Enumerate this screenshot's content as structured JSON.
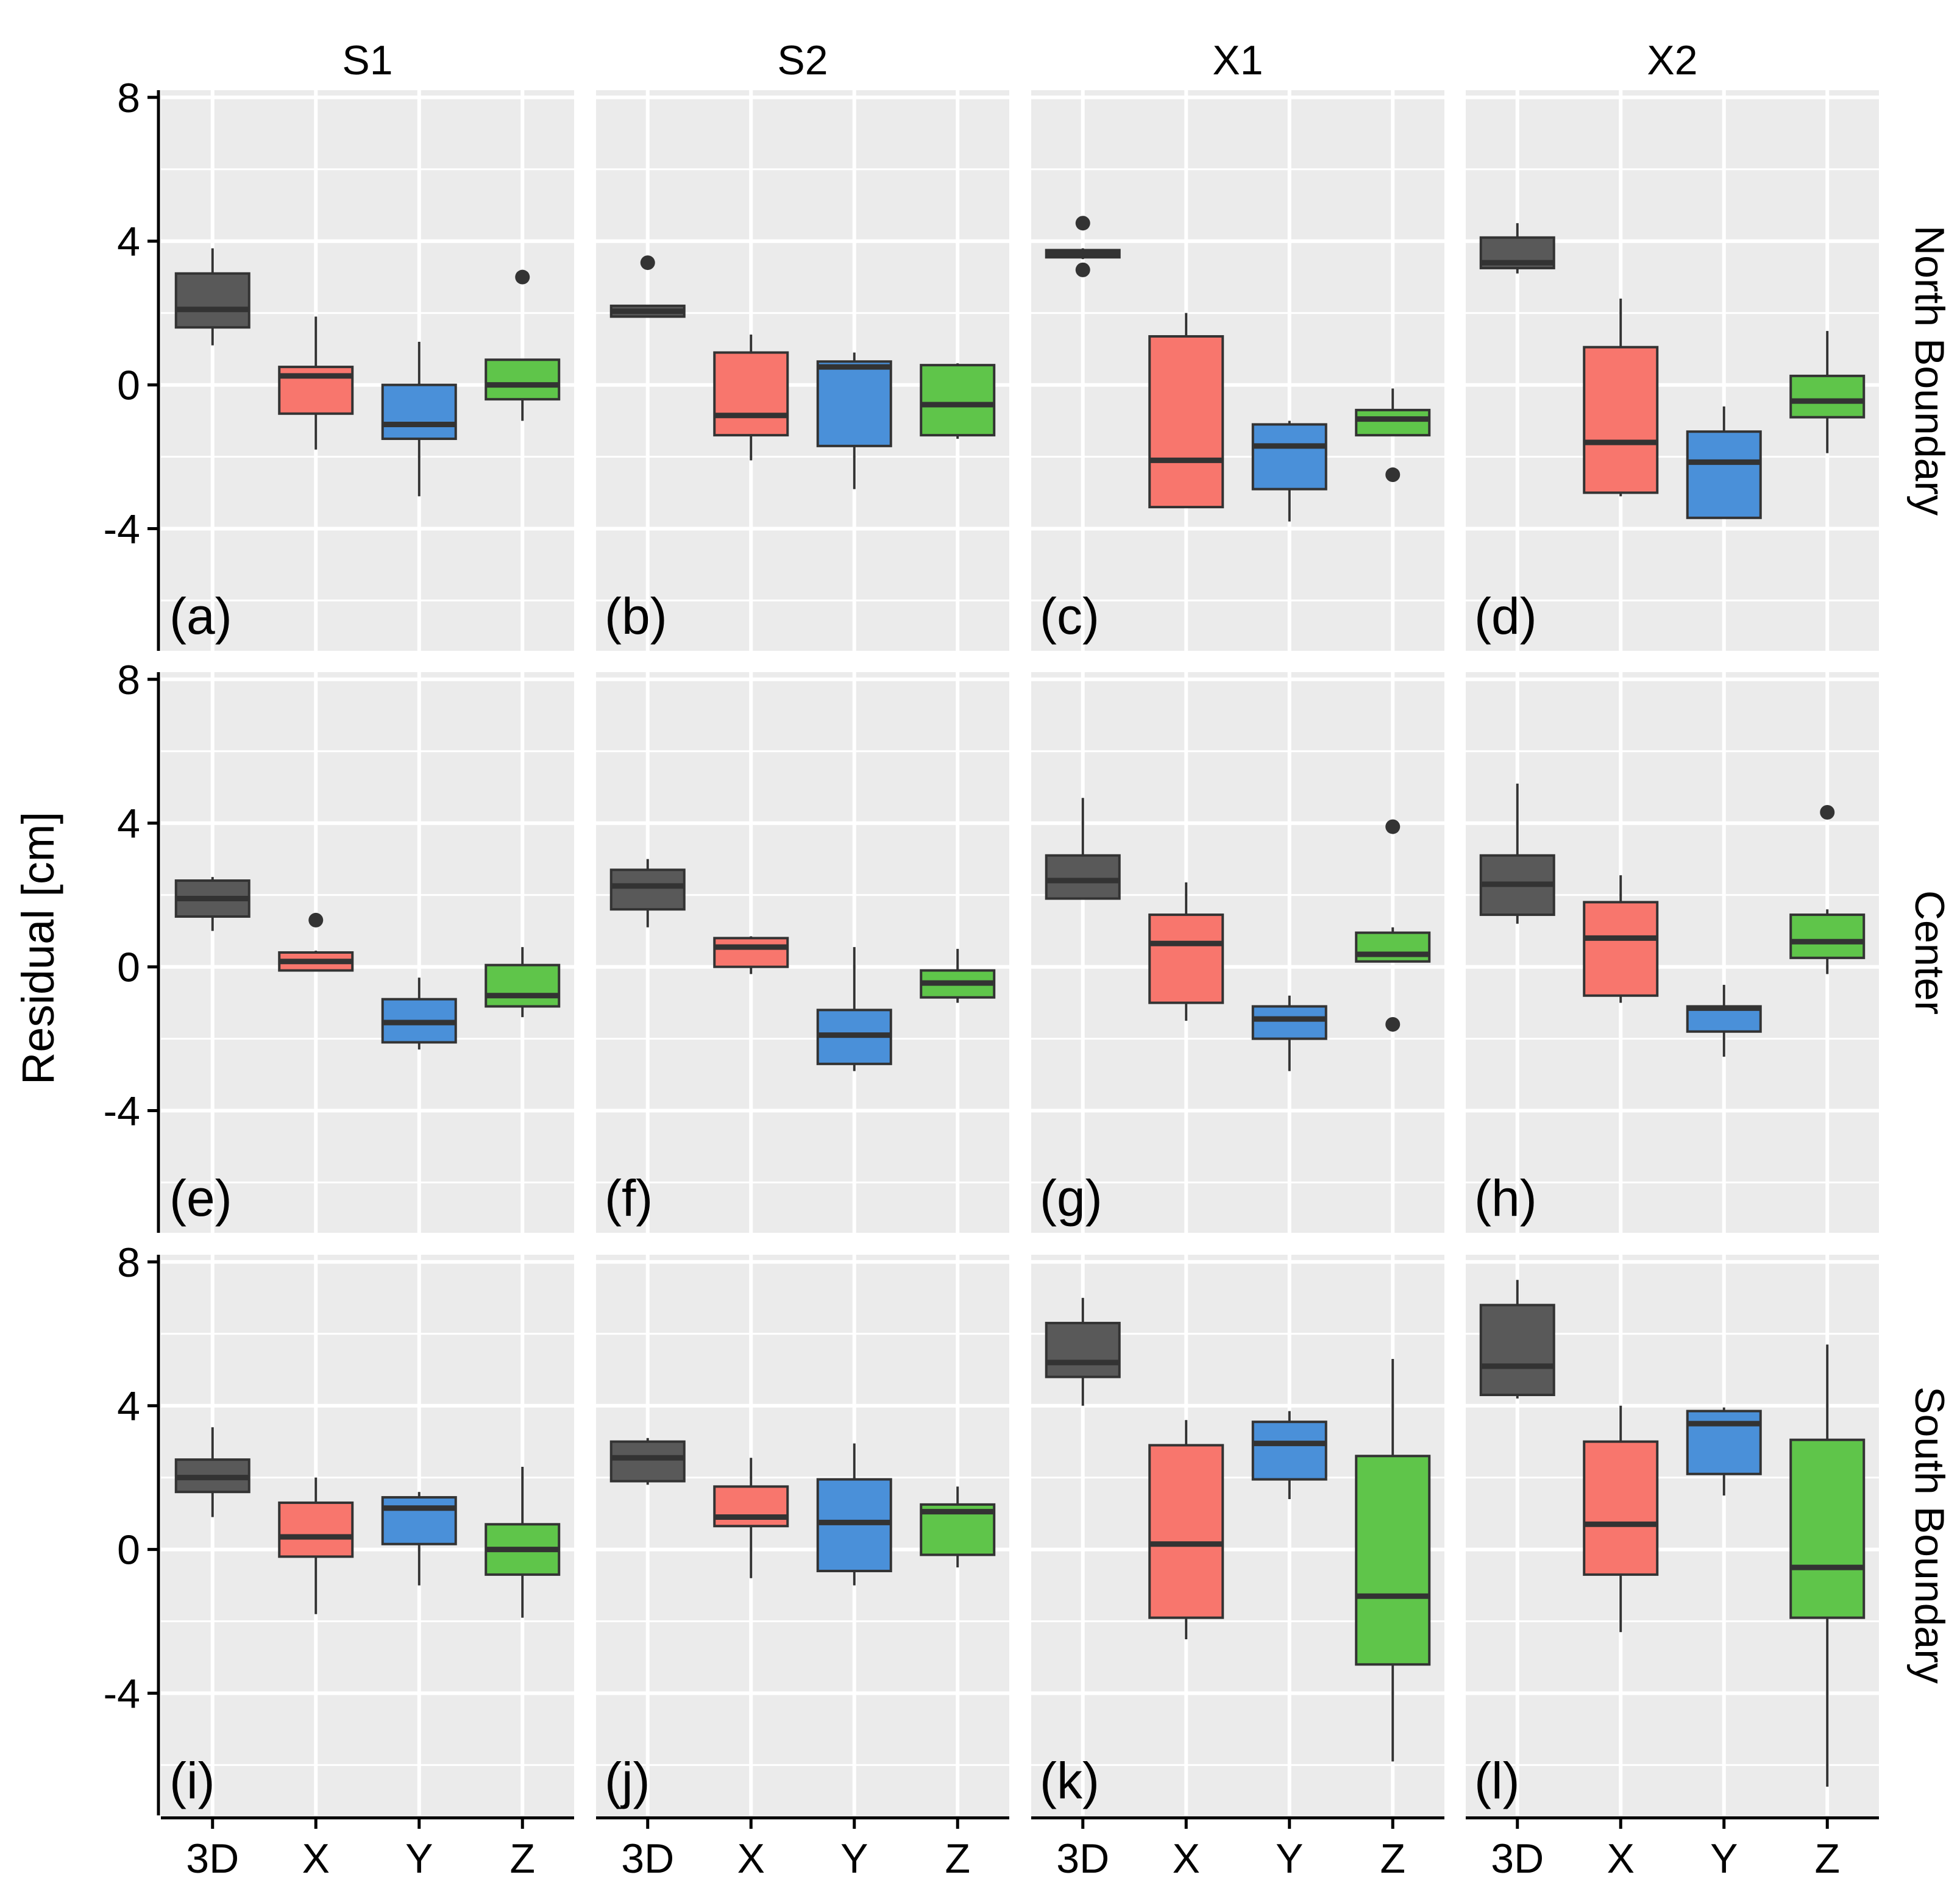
{
  "chart_data": {
    "type": "boxplot",
    "ylabel": "Residual [cm]",
    "xlabel": "",
    "categories": [
      "3D",
      "X",
      "Y",
      "Z"
    ],
    "column_facets": [
      "S1",
      "S2",
      "X1",
      "X2"
    ],
    "row_facets": [
      "North Boundary",
      "Center",
      "South Boundary"
    ],
    "ylim": [
      -7.4,
      8.2
    ],
    "y_ticks": [
      -4,
      0,
      4,
      8
    ],
    "y_tick_labels": [
      "-4",
      "0",
      "4",
      "8"
    ],
    "colors": {
      "3D": "#595959",
      "X": "#F8766D",
      "Y": "#4A90D9",
      "Z": "#5FC54A"
    },
    "panel_background": "#EBEBEB",
    "grid": true,
    "legend": "none",
    "panels": [
      {
        "label": "(a)",
        "row": 0,
        "col": 0,
        "boxes": [
          {
            "category": "3D",
            "min": 1.1,
            "q1": 1.6,
            "median": 2.1,
            "q3": 3.1,
            "max": 3.8,
            "outliers": []
          },
          {
            "category": "X",
            "min": -1.8,
            "q1": -0.8,
            "median": 0.25,
            "q3": 0.5,
            "max": 1.9,
            "outliers": []
          },
          {
            "category": "Y",
            "min": -3.1,
            "q1": -1.5,
            "median": -1.1,
            "q3": 0.0,
            "max": 1.2,
            "outliers": []
          },
          {
            "category": "Z",
            "min": -1.0,
            "q1": -0.4,
            "median": 0.0,
            "q3": 0.7,
            "max": 0.7,
            "outliers": [
              3.0
            ]
          }
        ]
      },
      {
        "label": "(b)",
        "row": 0,
        "col": 1,
        "boxes": [
          {
            "category": "3D",
            "min": 1.9,
            "q1": 1.9,
            "median": 2.05,
            "q3": 2.2,
            "max": 2.2,
            "outliers": [
              3.4
            ]
          },
          {
            "category": "X",
            "min": -2.1,
            "q1": -1.4,
            "median": -0.85,
            "q3": 0.9,
            "max": 1.4,
            "outliers": []
          },
          {
            "category": "Y",
            "min": -2.9,
            "q1": -1.7,
            "median": 0.5,
            "q3": 0.65,
            "max": 0.9,
            "outliers": []
          },
          {
            "category": "Z",
            "min": -1.5,
            "q1": -1.4,
            "median": -0.55,
            "q3": 0.55,
            "max": 0.6,
            "outliers": []
          }
        ]
      },
      {
        "label": "(c)",
        "row": 0,
        "col": 2,
        "boxes": [
          {
            "category": "3D",
            "min": 3.5,
            "q1": 3.55,
            "median": 3.65,
            "q3": 3.75,
            "max": 3.8,
            "outliers": [
              4.5,
              3.2
            ]
          },
          {
            "category": "X",
            "min": -3.4,
            "q1": -3.4,
            "median": -2.1,
            "q3": 1.35,
            "max": 2.0,
            "outliers": []
          },
          {
            "category": "Y",
            "min": -3.8,
            "q1": -2.9,
            "median": -1.7,
            "q3": -1.1,
            "max": -1.0,
            "outliers": []
          },
          {
            "category": "Z",
            "min": -1.4,
            "q1": -1.4,
            "median": -0.95,
            "q3": -0.7,
            "max": -0.1,
            "outliers": [
              -2.5
            ]
          }
        ]
      },
      {
        "label": "(d)",
        "row": 0,
        "col": 3,
        "boxes": [
          {
            "category": "3D",
            "min": 3.1,
            "q1": 3.25,
            "median": 3.4,
            "q3": 4.1,
            "max": 4.5,
            "outliers": []
          },
          {
            "category": "X",
            "min": -3.1,
            "q1": -3.0,
            "median": -1.6,
            "q3": 1.05,
            "max": 2.4,
            "outliers": []
          },
          {
            "category": "Y",
            "min": -3.7,
            "q1": -3.7,
            "median": -2.15,
            "q3": -1.3,
            "max": -0.6,
            "outliers": []
          },
          {
            "category": "Z",
            "min": -1.9,
            "q1": -0.9,
            "median": -0.45,
            "q3": 0.25,
            "max": 1.5,
            "outliers": []
          }
        ]
      },
      {
        "label": "(e)",
        "row": 1,
        "col": 0,
        "boxes": [
          {
            "category": "3D",
            "min": 1.0,
            "q1": 1.4,
            "median": 1.9,
            "q3": 2.4,
            "max": 2.5,
            "outliers": []
          },
          {
            "category": "X",
            "min": -0.1,
            "q1": -0.1,
            "median": 0.15,
            "q3": 0.4,
            "max": 0.45,
            "outliers": [
              1.3
            ]
          },
          {
            "category": "Y",
            "min": -2.3,
            "q1": -2.1,
            "median": -1.55,
            "q3": -0.9,
            "max": -0.3,
            "outliers": []
          },
          {
            "category": "Z",
            "min": -1.4,
            "q1": -1.1,
            "median": -0.8,
            "q3": 0.05,
            "max": 0.55,
            "outliers": []
          }
        ]
      },
      {
        "label": "(f)",
        "row": 1,
        "col": 1,
        "boxes": [
          {
            "category": "3D",
            "min": 1.1,
            "q1": 1.6,
            "median": 2.25,
            "q3": 2.7,
            "max": 3.0,
            "outliers": []
          },
          {
            "category": "X",
            "min": -0.2,
            "q1": 0.0,
            "median": 0.55,
            "q3": 0.8,
            "max": 0.85,
            "outliers": []
          },
          {
            "category": "Y",
            "min": -2.9,
            "q1": -2.7,
            "median": -1.9,
            "q3": -1.2,
            "max": 0.55,
            "outliers": []
          },
          {
            "category": "Z",
            "min": -1.0,
            "q1": -0.85,
            "median": -0.45,
            "q3": -0.1,
            "max": 0.5,
            "outliers": []
          }
        ]
      },
      {
        "label": "(g)",
        "row": 1,
        "col": 2,
        "boxes": [
          {
            "category": "3D",
            "min": 1.9,
            "q1": 1.9,
            "median": 2.4,
            "q3": 3.1,
            "max": 4.7,
            "outliers": []
          },
          {
            "category": "X",
            "min": -1.5,
            "q1": -1.0,
            "median": 0.65,
            "q3": 1.45,
            "max": 2.35,
            "outliers": []
          },
          {
            "category": "Y",
            "min": -2.9,
            "q1": -2.0,
            "median": -1.45,
            "q3": -1.1,
            "max": -0.8,
            "outliers": []
          },
          {
            "category": "Z",
            "min": 0.15,
            "q1": 0.15,
            "median": 0.35,
            "q3": 0.95,
            "max": 1.1,
            "outliers": [
              3.9,
              -1.6
            ]
          }
        ]
      },
      {
        "label": "(h)",
        "row": 1,
        "col": 3,
        "boxes": [
          {
            "category": "3D",
            "min": 1.2,
            "q1": 1.45,
            "median": 2.3,
            "q3": 3.1,
            "max": 5.1,
            "outliers": []
          },
          {
            "category": "X",
            "min": -1.0,
            "q1": -0.8,
            "median": 0.8,
            "q3": 1.8,
            "max": 2.55,
            "outliers": []
          },
          {
            "category": "Y",
            "min": -2.5,
            "q1": -1.8,
            "median": -1.15,
            "q3": -1.1,
            "max": -0.5,
            "outliers": []
          },
          {
            "category": "Z",
            "min": -0.2,
            "q1": 0.25,
            "median": 0.7,
            "q3": 1.45,
            "max": 1.6,
            "outliers": [
              4.3
            ]
          }
        ]
      },
      {
        "label": "(i)",
        "row": 2,
        "col": 0,
        "boxes": [
          {
            "category": "3D",
            "min": 0.9,
            "q1": 1.6,
            "median": 2.0,
            "q3": 2.5,
            "max": 3.4,
            "outliers": []
          },
          {
            "category": "X",
            "min": -1.8,
            "q1": -0.2,
            "median": 0.35,
            "q3": 1.3,
            "max": 2.0,
            "outliers": []
          },
          {
            "category": "Y",
            "min": -1.0,
            "q1": 0.15,
            "median": 1.15,
            "q3": 1.45,
            "max": 1.6,
            "outliers": []
          },
          {
            "category": "Z",
            "min": -1.9,
            "q1": -0.7,
            "median": 0.0,
            "q3": 0.7,
            "max": 2.3,
            "outliers": []
          }
        ]
      },
      {
        "label": "(j)",
        "row": 2,
        "col": 1,
        "boxes": [
          {
            "category": "3D",
            "min": 1.8,
            "q1": 1.9,
            "median": 2.55,
            "q3": 3.0,
            "max": 3.1,
            "outliers": []
          },
          {
            "category": "X",
            "min": -0.8,
            "q1": 0.65,
            "median": 0.9,
            "q3": 1.75,
            "max": 2.55,
            "outliers": []
          },
          {
            "category": "Y",
            "min": -1.0,
            "q1": -0.6,
            "median": 0.75,
            "q3": 1.95,
            "max": 2.95,
            "outliers": []
          },
          {
            "category": "Z",
            "min": -0.5,
            "q1": -0.15,
            "median": 1.05,
            "q3": 1.25,
            "max": 1.75,
            "outliers": []
          }
        ]
      },
      {
        "label": "(k)",
        "row": 2,
        "col": 2,
        "boxes": [
          {
            "category": "3D",
            "min": 4.0,
            "q1": 4.8,
            "median": 5.2,
            "q3": 6.3,
            "max": 7.0,
            "outliers": []
          },
          {
            "category": "X",
            "min": -2.5,
            "q1": -1.9,
            "median": 0.15,
            "q3": 2.9,
            "max": 3.6,
            "outliers": []
          },
          {
            "category": "Y",
            "min": 1.4,
            "q1": 1.95,
            "median": 2.95,
            "q3": 3.55,
            "max": 3.85,
            "outliers": []
          },
          {
            "category": "Z",
            "min": -5.9,
            "q1": -3.2,
            "median": -1.3,
            "q3": 2.6,
            "max": 5.3,
            "outliers": []
          }
        ]
      },
      {
        "label": "(l)",
        "row": 2,
        "col": 3,
        "boxes": [
          {
            "category": "3D",
            "min": 4.2,
            "q1": 4.3,
            "median": 5.1,
            "q3": 6.8,
            "max": 7.5,
            "outliers": []
          },
          {
            "category": "X",
            "min": -2.3,
            "q1": -0.7,
            "median": 0.7,
            "q3": 3.0,
            "max": 4.0,
            "outliers": []
          },
          {
            "category": "Y",
            "min": 1.5,
            "q1": 2.1,
            "median": 3.5,
            "q3": 3.85,
            "max": 3.95,
            "outliers": []
          },
          {
            "category": "Z",
            "min": -6.6,
            "q1": -1.9,
            "median": -0.5,
            "q3": 3.05,
            "max": 5.7,
            "outliers": []
          }
        ]
      }
    ]
  }
}
